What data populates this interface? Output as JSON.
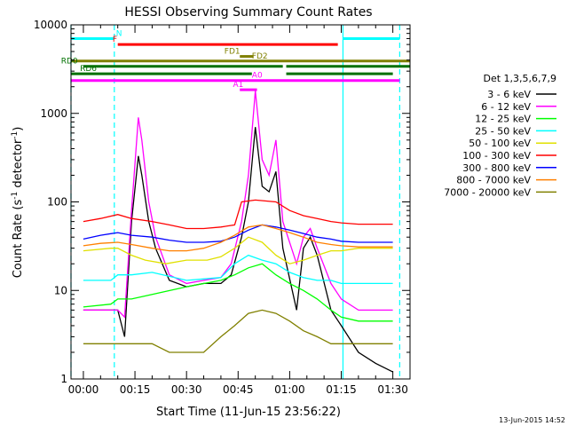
{
  "chart_data": {
    "type": "line",
    "title": "HESSI Observing Summary Count Rates",
    "xlabel": "Start Time (11-Jun-15 23:56:22)",
    "ylabel_main": "Count Rate (s",
    "ylabel_sup1": "-1",
    "ylabel_mid": " detector",
    "ylabel_sup2": "-1",
    "ylabel_end": ")",
    "yscale": "log",
    "ylim": [
      1,
      10000
    ],
    "xlim_minutes": [
      -3.6,
      95
    ],
    "x_ticks": [
      {
        "m": 0,
        "label": "00:00"
      },
      {
        "m": 15,
        "label": "00:15"
      },
      {
        "m": 30,
        "label": "00:30"
      },
      {
        "m": 45,
        "label": "00:45"
      },
      {
        "m": 60,
        "label": "01:00"
      },
      {
        "m": 75,
        "label": "01:15"
      },
      {
        "m": 90,
        "label": "01:30"
      }
    ],
    "y_ticks": [
      {
        "v": 1,
        "label": "1"
      },
      {
        "v": 10,
        "label": "10"
      },
      {
        "v": 100,
        "label": "100"
      },
      {
        "v": 1000,
        "label": "1000"
      },
      {
        "v": 10000,
        "label": "10000"
      }
    ],
    "legend_title": "Det 1,3,5,6,7,9",
    "legend_placement": "right",
    "series": [
      {
        "name": "3 - 6 keV",
        "color": "#000000",
        "x": [
          0,
          8,
          10,
          12,
          14,
          16,
          17,
          19,
          21,
          25,
          30,
          35,
          40,
          43,
          46,
          48,
          50,
          52,
          54,
          56,
          58,
          62,
          64,
          66,
          68,
          72,
          75,
          80,
          85,
          90
        ],
        "y": [
          6,
          6,
          6,
          3,
          60,
          330,
          200,
          60,
          30,
          13,
          11,
          12,
          12,
          15,
          40,
          100,
          700,
          150,
          130,
          220,
          30,
          6,
          30,
          40,
          25,
          6,
          4,
          2,
          1.5,
          1.2
        ]
      },
      {
        "name": "6 - 12 keV",
        "color": "#ff00ff",
        "x": [
          0,
          8,
          10,
          12,
          14,
          16,
          17,
          19,
          21,
          25,
          30,
          35,
          40,
          43,
          46,
          48,
          50,
          52,
          54,
          56,
          58,
          62,
          64,
          66,
          68,
          72,
          75,
          80,
          85,
          90
        ],
        "y": [
          6,
          6,
          6,
          5,
          80,
          900,
          500,
          100,
          40,
          15,
          12,
          13,
          14,
          20,
          60,
          200,
          1800,
          300,
          200,
          500,
          60,
          20,
          40,
          50,
          30,
          12,
          8,
          6,
          6,
          6
        ]
      },
      {
        "name": "12 - 25 keV",
        "color": "#00ff00",
        "x": [
          0,
          8,
          10,
          14,
          20,
          30,
          40,
          44,
          48,
          52,
          56,
          60,
          64,
          68,
          72,
          75,
          80,
          85,
          90
        ],
        "y": [
          6.5,
          7,
          8,
          8,
          9,
          11,
          13,
          15,
          18,
          20,
          15,
          12,
          10,
          8,
          6,
          5,
          4.5,
          4.5,
          4.5
        ]
      },
      {
        "name": "25 - 50 keV",
        "color": "#00ffff",
        "x": [
          0,
          8,
          10,
          14,
          20,
          30,
          40,
          44,
          48,
          52,
          56,
          60,
          64,
          68,
          72,
          75,
          80,
          85,
          90
        ],
        "y": [
          13,
          13,
          15,
          15,
          16,
          13,
          14,
          20,
          25,
          22,
          20,
          16,
          14,
          13,
          13,
          12,
          12,
          12,
          12
        ]
      },
      {
        "name": "50 - 100 keV",
        "color": "#e0e000",
        "x": [
          0,
          8,
          10,
          14,
          18,
          24,
          30,
          36,
          40,
          44,
          48,
          52,
          56,
          60,
          64,
          68,
          72,
          75,
          80,
          85,
          90
        ],
        "y": [
          28,
          30,
          30,
          25,
          22,
          20,
          22,
          22,
          24,
          30,
          40,
          35,
          25,
          20,
          22,
          25,
          28,
          28,
          30,
          30,
          30
        ]
      },
      {
        "name": "100 - 300 keV",
        "color": "#ff0000",
        "x": [
          0,
          5,
          10,
          14,
          20,
          25,
          30,
          35,
          40,
          44,
          46,
          50,
          56,
          60,
          64,
          68,
          72,
          75,
          80,
          85,
          90
        ],
        "y": [
          60,
          65,
          72,
          65,
          60,
          55,
          50,
          50,
          52,
          55,
          100,
          105,
          100,
          80,
          70,
          65,
          60,
          58,
          56,
          56,
          56
        ]
      },
      {
        "name": "300 - 800 keV",
        "color": "#0000ff",
        "x": [
          0,
          5,
          10,
          14,
          20,
          25,
          30,
          35,
          40,
          44,
          48,
          52,
          56,
          60,
          64,
          68,
          72,
          75,
          80,
          85,
          90
        ],
        "y": [
          38,
          42,
          45,
          42,
          40,
          37,
          35,
          35,
          36,
          40,
          48,
          55,
          52,
          48,
          44,
          40,
          38,
          36,
          35,
          35,
          35
        ]
      },
      {
        "name": "800 - 7000 keV",
        "color": "#ff8000",
        "x": [
          0,
          5,
          10,
          14,
          20,
          25,
          30,
          35,
          40,
          44,
          48,
          52,
          56,
          60,
          64,
          68,
          72,
          75,
          80,
          85,
          90
        ],
        "y": [
          32,
          34,
          35,
          33,
          30,
          28,
          28,
          30,
          35,
          42,
          52,
          55,
          50,
          45,
          40,
          35,
          33,
          32,
          31,
          31,
          31
        ]
      },
      {
        "name": "7000 - 20000 keV",
        "color": "#808000",
        "x": [
          0,
          5,
          10,
          14,
          20,
          25,
          30,
          35,
          40,
          44,
          48,
          52,
          56,
          60,
          64,
          68,
          72,
          75,
          80,
          85,
          90
        ],
        "y": [
          2.5,
          2.5,
          2.5,
          2.5,
          2.5,
          2,
          2,
          2,
          3,
          4,
          5.5,
          6,
          5.5,
          4.5,
          3.5,
          3,
          2.5,
          2.5,
          2.5,
          2.5,
          2.5
        ]
      }
    ],
    "flags": [
      {
        "label": "N",
        "label_m": 9.5,
        "color": "#00ffff",
        "level": 7000,
        "segments": [
          [
            -3.6,
            9
          ],
          [
            75.5,
            92
          ]
        ]
      },
      {
        "label": "F",
        "label_m": 8.5,
        "color": "#ff0000",
        "level": 6000,
        "segments": [
          [
            10,
            74
          ]
        ]
      },
      {
        "label": "FD1",
        "label_m": 41,
        "color": "#808000",
        "level": 4400,
        "segments": [
          [
            45.5,
            49.5
          ]
        ]
      },
      {
        "label": "FD2",
        "label_m": 49,
        "color": "#808000",
        "level": 3900,
        "segments": [
          [
            -3.6,
            95
          ]
        ]
      },
      {
        "label": "RD0",
        "label_m": -6.5,
        "color": "#007000",
        "level": 3400,
        "segments": [
          [
            0,
            58
          ],
          [
            59,
            95
          ]
        ]
      },
      {
        "label": "RD6",
        "label_m": -1,
        "color": "#007000",
        "level": 2800,
        "segments": [
          [
            -3.6,
            49
          ],
          [
            59,
            90
          ]
        ]
      },
      {
        "label": "A0",
        "label_m": 49,
        "color": "#ff00ff",
        "level": 2350,
        "segments": [
          [
            -3.6,
            92
          ]
        ]
      },
      {
        "label": "A1",
        "label_m": 43.5,
        "color": "#ff00ff",
        "level": 1850,
        "segments": [
          [
            45.5,
            50.5
          ]
        ]
      }
    ],
    "vlines": [
      {
        "m": -3.6,
        "color": "#00ffff",
        "style": "dashed"
      },
      {
        "m": 9,
        "color": "#00ffff",
        "style": "dashed"
      },
      {
        "m": 75.5,
        "color": "#00ffff",
        "style": "solid"
      },
      {
        "m": 92,
        "color": "#00ffff",
        "style": "dashed"
      }
    ],
    "timestamp": "13-Jun-2015 14:52"
  }
}
